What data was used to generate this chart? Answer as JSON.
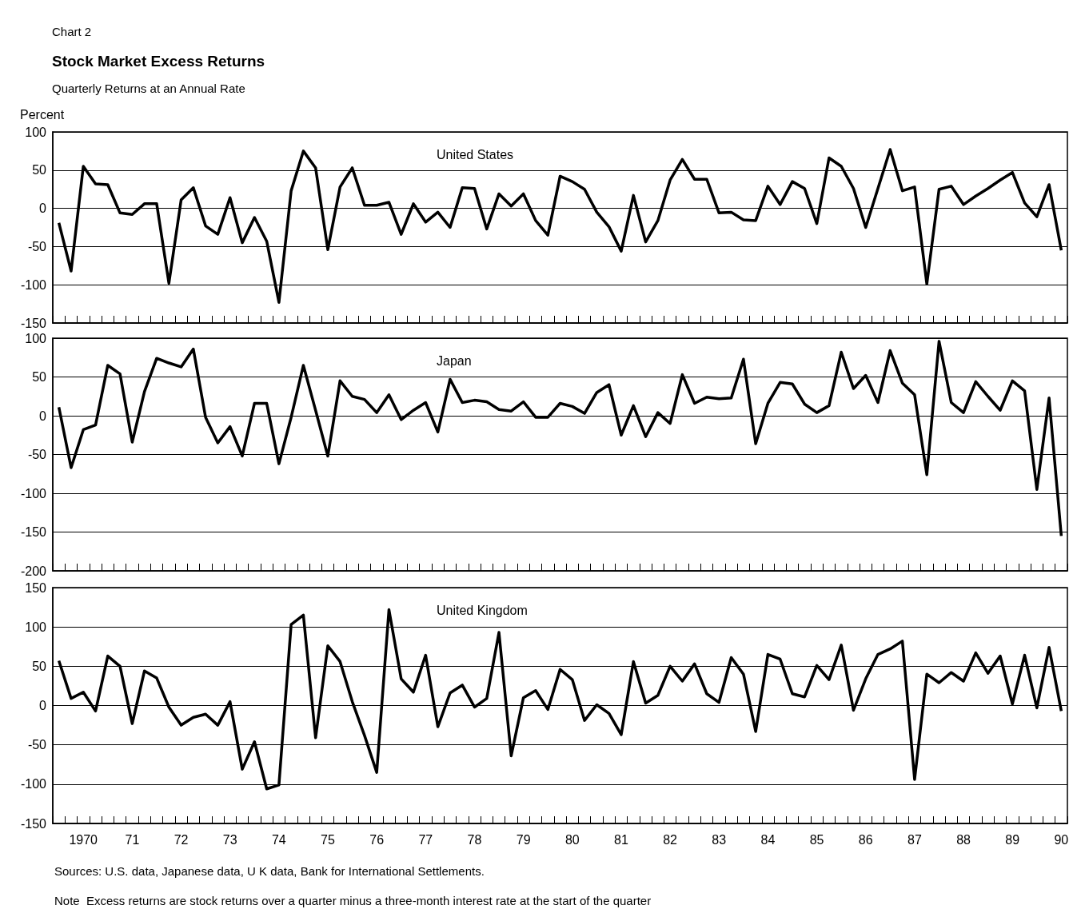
{
  "chart_data": [
    {
      "type": "line",
      "title": "Stock Market Excess Returns",
      "subtitle": "Quarterly Returns at an Annual Rate",
      "ylabel": "Percent",
      "annotations": [
        "Chart 2",
        "United States"
      ],
      "categories": [
        null,
        null,
        "1970",
        null,
        null,
        null,
        "71",
        null,
        null,
        null,
        "72",
        null,
        null,
        null,
        "73",
        null,
        null,
        null,
        "74",
        null,
        null,
        null,
        "75",
        null,
        null,
        null,
        "76",
        null,
        null,
        null,
        "77",
        null,
        null,
        null,
        "78",
        null,
        null,
        null,
        "79",
        null,
        null,
        null,
        "80",
        null,
        null,
        null,
        "81",
        null,
        null,
        null,
        "82",
        null,
        null,
        null,
        "83",
        null,
        null,
        null,
        "84",
        null,
        null,
        null,
        "85",
        null,
        null,
        null,
        "86",
        null,
        null,
        null,
        "87",
        null,
        null,
        null,
        "88",
        null,
        null,
        null,
        "89",
        null,
        null,
        null,
        "90"
      ],
      "values": [
        -19,
        -82,
        55,
        32,
        31,
        -6,
        -8,
        6,
        6,
        -98,
        11,
        27,
        -23,
        -34,
        14,
        -45,
        -12,
        -43,
        -123,
        23,
        75,
        53,
        -54,
        28,
        53,
        4,
        4,
        8,
        -34,
        6,
        -18,
        -5,
        -25,
        27,
        26,
        -27,
        19,
        3,
        19,
        -16,
        -35,
        42,
        35,
        25,
        -5,
        -24,
        -56,
        17,
        -44,
        -16,
        37,
        64,
        38,
        38,
        -6,
        -5,
        -15,
        -16,
        29,
        5,
        35,
        26,
        -20,
        66,
        55,
        26,
        -25,
        26,
        77,
        23,
        28,
        -99,
        25,
        29,
        5,
        16,
        26,
        37,
        47,
        7,
        -11,
        31,
        -55
      ],
      "color": "#000000",
      "marker": "none",
      "line_style": "solid",
      "grid": "y",
      "tick_labels": "y",
      "ylim": [
        -150,
        100
      ],
      "yticks": [
        -150,
        -100,
        -50,
        0,
        50,
        100
      ]
    },
    {
      "type": "line",
      "annotations": [
        "Japan"
      ],
      "categories": [
        null,
        null,
        "1970",
        null,
        null,
        null,
        "71",
        null,
        null,
        null,
        "72",
        null,
        null,
        null,
        "73",
        null,
        null,
        null,
        "74",
        null,
        null,
        null,
        "75",
        null,
        null,
        null,
        "76",
        null,
        null,
        null,
        "77",
        null,
        null,
        null,
        "78",
        null,
        null,
        null,
        "79",
        null,
        null,
        null,
        "80",
        null,
        null,
        null,
        "81",
        null,
        null,
        null,
        "82",
        null,
        null,
        null,
        "83",
        null,
        null,
        null,
        "84",
        null,
        null,
        null,
        "85",
        null,
        null,
        null,
        "86",
        null,
        null,
        null,
        "87",
        null,
        null,
        null,
        "88",
        null,
        null,
        null,
        "89",
        null,
        null,
        null,
        "90"
      ],
      "values": [
        11,
        -67,
        -18,
        -12,
        65,
        54,
        -34,
        31,
        74,
        68,
        63,
        86,
        -2,
        -35,
        -14,
        -52,
        16,
        16,
        -62,
        -2,
        65,
        7,
        -52,
        45,
        25,
        21,
        4,
        27,
        -5,
        7,
        17,
        -21,
        47,
        17,
        20,
        18,
        8,
        6,
        18,
        -2,
        -2,
        16,
        12,
        3,
        30,
        40,
        -25,
        13,
        -27,
        4,
        -10,
        53,
        16,
        24,
        22,
        23,
        73,
        -36,
        16,
        43,
        41,
        15,
        4,
        13,
        82,
        35,
        52,
        17,
        84,
        42,
        27,
        -76,
        96,
        17,
        4,
        44,
        25,
        7,
        45,
        32,
        -95,
        23,
        -155
      ],
      "color": "#000000",
      "marker": "none",
      "line_style": "solid",
      "grid": "y",
      "tick_labels": "y",
      "ylim": [
        -200,
        100
      ],
      "yticks": [
        -200,
        -150,
        -100,
        -50,
        0,
        50,
        100
      ]
    },
    {
      "type": "line",
      "annotations": [
        "United Kingdom",
        "Sources: U.S. data, Japanese data, U K data, Bank for International Settlements.",
        "Note  Excess returns are stock returns over a quarter minus a three-month interest rate at the start of the quarter"
      ],
      "categories": [
        null,
        null,
        "1970",
        null,
        null,
        null,
        "71",
        null,
        null,
        null,
        "72",
        null,
        null,
        null,
        "73",
        null,
        null,
        null,
        "74",
        null,
        null,
        null,
        "75",
        null,
        null,
        null,
        "76",
        null,
        null,
        null,
        "77",
        null,
        null,
        null,
        "78",
        null,
        null,
        null,
        "79",
        null,
        null,
        null,
        "80",
        null,
        null,
        null,
        "81",
        null,
        null,
        null,
        "82",
        null,
        null,
        null,
        "83",
        null,
        null,
        null,
        "84",
        null,
        null,
        null,
        "85",
        null,
        null,
        null,
        "86",
        null,
        null,
        null,
        "87",
        null,
        null,
        null,
        "88",
        null,
        null,
        null,
        "89",
        null,
        null,
        null,
        "90"
      ],
      "values": [
        57,
        9,
        17,
        -7,
        63,
        50,
        -23,
        44,
        35,
        -2,
        -25,
        -15,
        -11,
        -25,
        5,
        -81,
        -46,
        -106,
        -101,
        103,
        115,
        -41,
        76,
        56,
        5,
        -38,
        -85,
        122,
        34,
        17,
        64,
        -27,
        16,
        26,
        -2,
        9,
        93,
        -64,
        10,
        19,
        -5,
        46,
        33,
        -19,
        1,
        -10,
        -37,
        56,
        3,
        13,
        50,
        31,
        53,
        15,
        4,
        61,
        40,
        -33,
        65,
        59,
        15,
        11,
        51,
        33,
        77,
        -6,
        34,
        65,
        72,
        82,
        -94,
        40,
        29,
        42,
        31,
        67,
        41,
        63,
        2,
        64,
        -3,
        74,
        -7
      ],
      "color": "#000000",
      "marker": "none",
      "line_style": "solid",
      "grid": "y",
      "ylim": [
        -150,
        150
      ],
      "yticks": [
        -150,
        -100,
        -50,
        0,
        50,
        100,
        150
      ]
    }
  ]
}
